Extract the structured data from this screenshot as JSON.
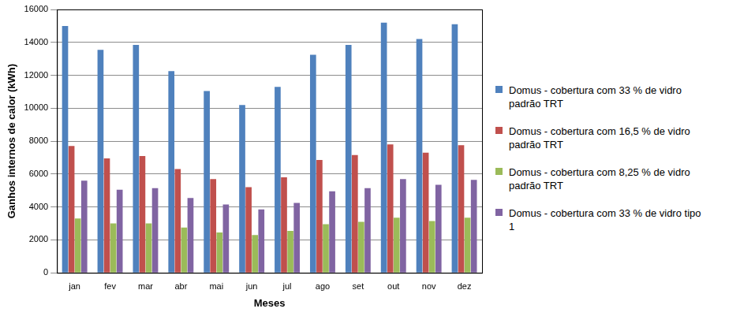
{
  "chart_data": {
    "type": "bar",
    "x_label": "Meses",
    "y_label": "Ganhos internos de calor (kWh)",
    "categories": [
      "jan",
      "fev",
      "mar",
      "abr",
      "mai",
      "jun",
      "jul",
      "ago",
      "set",
      "out",
      "nov",
      "dez"
    ],
    "series": [
      {
        "name": "Domus - cobertura com 33 % de vidro  padrão TRT",
        "color": "#4f81bd",
        "values": [
          15000,
          13550,
          13850,
          12250,
          11050,
          10200,
          11300,
          13250,
          13850,
          15200,
          14200,
          15100
        ]
      },
      {
        "name": "Domus - cobertura com 16,5 % de vidro  padrão TRT",
        "color": "#c0504d",
        "values": [
          7700,
          6950,
          7100,
          6300,
          5700,
          5200,
          5800,
          6850,
          7150,
          7800,
          7300,
          7750
        ]
      },
      {
        "name": "Domus - cobertura com 8,25 % de vidro  padrão TRT",
        "color": "#9bbb59",
        "values": [
          3300,
          3000,
          3000,
          2750,
          2450,
          2300,
          2550,
          2950,
          3100,
          3350,
          3150,
          3350
        ]
      },
      {
        "name": "Domus - cobertura com 33 % de vidro tipo 1",
        "color": "#8064a2",
        "values": [
          5600,
          5050,
          5150,
          4550,
          4150,
          3850,
          4250,
          4950,
          5150,
          5700,
          5350,
          5650
        ]
      }
    ],
    "ylim": [
      0,
      16000
    ],
    "yticks": [
      0,
      2000,
      4000,
      6000,
      8000,
      10000,
      12000,
      14000,
      16000
    ],
    "grid": true,
    "legend": "right"
  }
}
